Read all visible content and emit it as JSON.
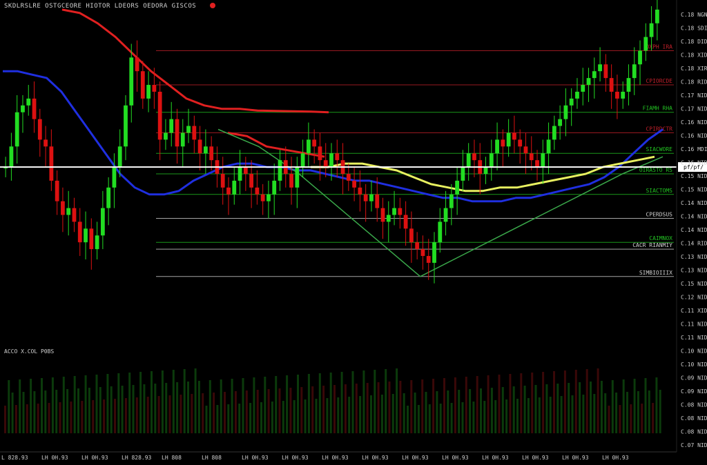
{
  "header": {
    "title": "SKDLRSLRE  OSTGCEORE  HIOTOR  LDEORS  OEDORA  GISCOS",
    "status_dot_color": "#e02020"
  },
  "colors": {
    "background": "#000000",
    "bull": "#22dd22",
    "bear": "#dd1111",
    "ma_blue": "#1f2fe0",
    "ma_red": "#e02020",
    "ma_yellow": "#e8f060",
    "trend_green": "#3aa84a"
  },
  "chart_data": {
    "type": "candlestick",
    "price_axis": {
      "ticks": [
        "C.18 NGN",
        "C.18 SDIN",
        "C.18 DIDN",
        "C.18 XIDN",
        "C.18 XIRN",
        "C.18 RIDN",
        "C.17 NIDN",
        "C.17 NIDN",
        "C.16 NIDN",
        "C.16 NIDN",
        "C.16 MDIN",
        "C.16 NIDN",
        "C.15 NIDN",
        "C.15 NIDN",
        "C.14 NIDN",
        "C.14 NIDN",
        "C.14 NIDN",
        "C.14 RIDN",
        "C.13 NIDN",
        "C.13 NIDN",
        "C.15 NIDN",
        "C.12 NIDN",
        "C.11 XIDN",
        "C.11 NIDN",
        "C.11 NIDN",
        "C.10 NIDN",
        "C.10 NIDN",
        "C.09 NIDN",
        "C.09 NIDN",
        "C.08 NIDN",
        "C.08 NIDN",
        "C.08 NIDN",
        "C.07 NIDN"
      ],
      "current_price_label": "pf/pf/",
      "ylim": [
        0,
        100
      ]
    },
    "time_axis": {
      "labels": [
        "L 828.93",
        "LH 0H.93",
        "LH 0H.93",
        "LH 828.93",
        "LH 808",
        "LH 808",
        "LH 0H.93",
        "LH 0H.93",
        "LH 0H.93",
        "LH 0H.93",
        "LH 0H.93",
        "LH 0H.93",
        "LH 0H.93",
        "LH 0H.93",
        "LH 0H.93",
        "LH 0H.93"
      ]
    },
    "levels": [
      {
        "label": "OXPH IRA",
        "value": 86,
        "color": "#c0202a"
      },
      {
        "label": "CPIORCDE",
        "value": 76,
        "color": "#c0202a"
      },
      {
        "label": "FIAMH RHA",
        "value": 68,
        "color": "#22c022"
      },
      {
        "label": "CPIRDCTR",
        "value": 62,
        "color": "#c0202a"
      },
      {
        "label": "SIACWORE",
        "value": 56,
        "color": "#22c022"
      },
      {
        "label": "OIRASTO RS",
        "value": 50,
        "color": "#22c022"
      },
      {
        "label": "SIACTOMS",
        "value": 44,
        "color": "#22c022"
      },
      {
        "label": "CPERDSUS",
        "value": 37,
        "color": "#d0d0d0"
      },
      {
        "label": "CAIMNOX",
        "value": 30,
        "color": "#22c022"
      },
      {
        "label": "CACR RIANMIY",
        "value": 28,
        "color": "#d0d0d0"
      },
      {
        "label": "SIMBIOIIIX",
        "value": 20,
        "color": "#d0d0d0"
      }
    ],
    "current_price": 52,
    "series": [
      {
        "type": "candles",
        "values": [
          52,
          58,
          68,
          70,
          72,
          66,
          60,
          58,
          48,
          42,
          38,
          40,
          36,
          30,
          34,
          28,
          32,
          40,
          46,
          52,
          58,
          70,
          84,
          80,
          72,
          76,
          74,
          60,
          62,
          66,
          58,
          62,
          64,
          60,
          56,
          58,
          54,
          50,
          46,
          44,
          48,
          52,
          50,
          46,
          44,
          42,
          44,
          48,
          54,
          50,
          46,
          52,
          56,
          60,
          58,
          54,
          52,
          56,
          54,
          50,
          48,
          46,
          44,
          42,
          44,
          40,
          36,
          38,
          40,
          38,
          34,
          30,
          28,
          26,
          24,
          30,
          36,
          40,
          44,
          48,
          52,
          56,
          54,
          50,
          52,
          56,
          60,
          58,
          62,
          60,
          58,
          56,
          54,
          52,
          56,
          60,
          64,
          66,
          70,
          72,
          74,
          76,
          78,
          80,
          82,
          78,
          74,
          72,
          74,
          78,
          82,
          86,
          90,
          94,
          98
        ]
      },
      {
        "type": "ma",
        "name": "",
        "color": "#1f2fe0",
        "values": [
          80,
          80,
          79,
          78,
          74,
          68,
          62,
          56,
          50,
          46,
          44,
          44,
          45,
          48,
          50,
          52,
          53,
          53,
          52,
          52,
          51,
          51,
          50,
          49,
          48,
          48,
          47,
          46,
          45,
          44,
          43,
          43,
          42,
          42,
          42,
          43,
          43,
          44,
          45,
          46,
          47,
          49,
          52,
          56,
          60,
          63
        ]
      },
      {
        "type": "ma",
        "name": "",
        "color": "#e02020",
        "values": [
          98,
          97,
          94,
          90,
          85,
          80,
          76,
          72,
          70,
          69,
          69,
          68.5,
          68.4,
          68.3,
          68.2,
          68
        ]
      },
      {
        "type": "ma",
        "name": "",
        "color": "#e02020",
        "values": [
          62,
          61,
          58,
          57,
          56,
          55
        ]
      },
      {
        "type": "ma",
        "name": "",
        "color": "#e8f060",
        "values": [
          52,
          52,
          53,
          53,
          52,
          51,
          49,
          47,
          46,
          45,
          45,
          46,
          46,
          47,
          48,
          49,
          50,
          52,
          53,
          54,
          55
        ]
      },
      {
        "type": "trend",
        "name": "",
        "color": "#3aa84a",
        "values": [
          63,
          58,
          50,
          40,
          30,
          20,
          26,
          32,
          38,
          44,
          50,
          55
        ]
      }
    ]
  },
  "volume_panel": {
    "label": "ACCO X.COL  P0BS"
  }
}
